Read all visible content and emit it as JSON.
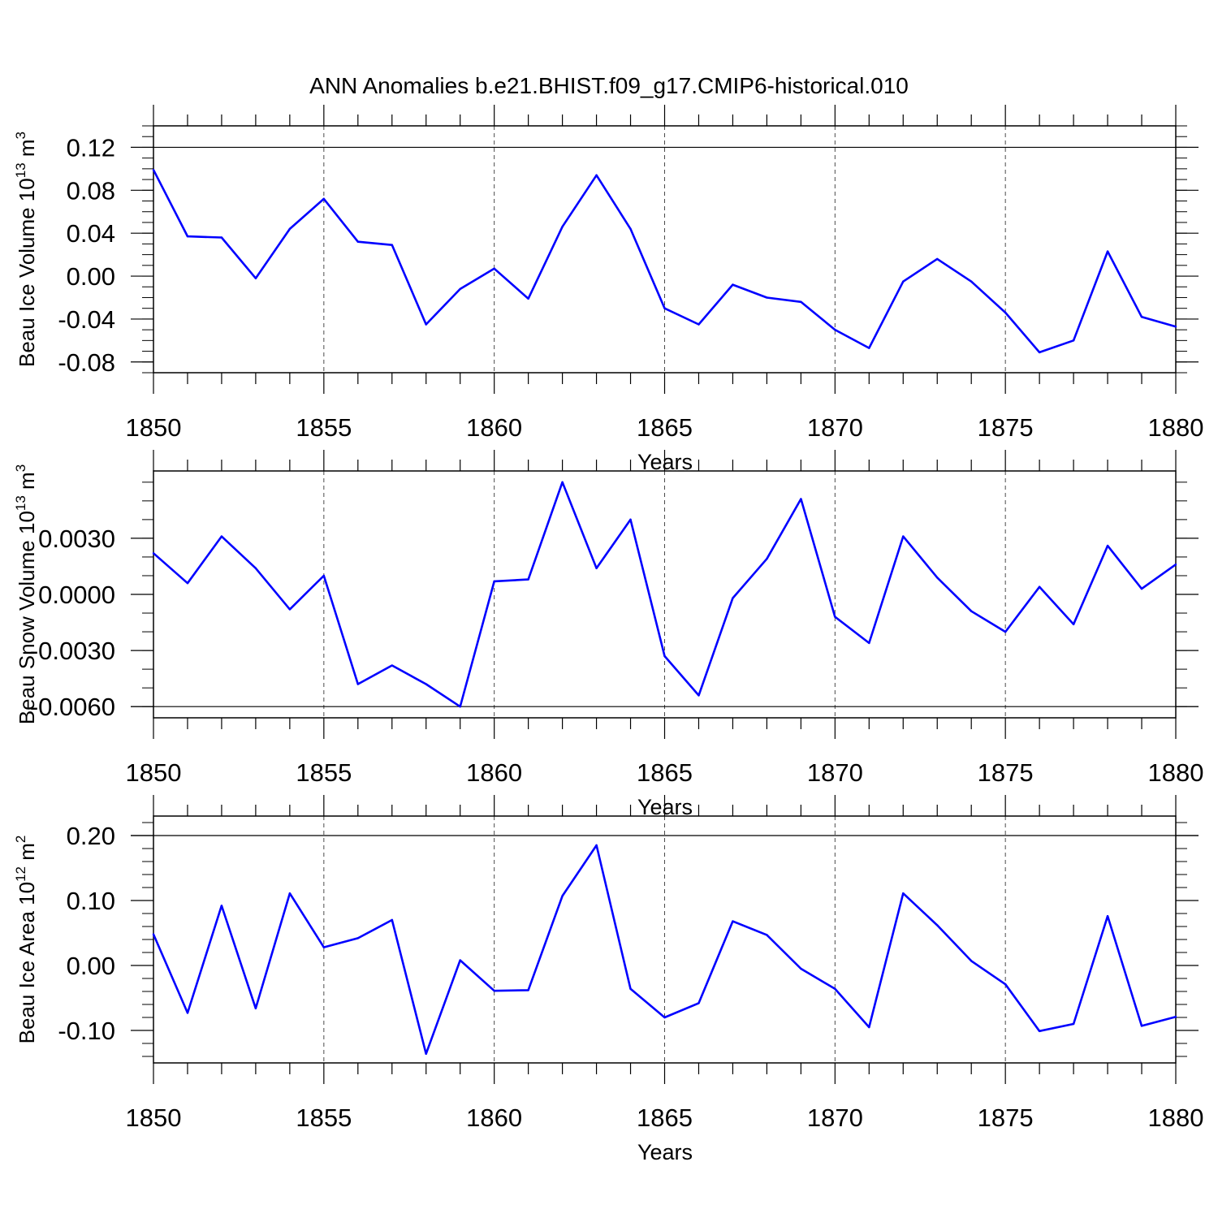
{
  "title": "ANN Anomalies b.e21.BHIST.f09_g17.CMIP6-historical.010",
  "colors": {
    "line": "#0000ff",
    "axis": "#000000",
    "grid": "#000000"
  },
  "chart_data": [
    {
      "type": "line",
      "name": "panel-ice-volume",
      "ylabel": "Beau Ice Volume 10",
      "ylabel_sup": "13",
      "ylabel_unit": " m",
      "ylabel_unit_sup": "3",
      "xlabel": "Years",
      "xlim": [
        1850,
        1880
      ],
      "ylim": [
        -0.09,
        0.14
      ],
      "xticks": [
        1850,
        1855,
        1860,
        1865,
        1870,
        1875,
        1880
      ],
      "xtick_labels": [
        "1850",
        "1855",
        "1860",
        "1865",
        "1870",
        "1875",
        "1880"
      ],
      "yticks": [
        0.12,
        0.08,
        0.04,
        0.0,
        -0.04,
        -0.08
      ],
      "ytick_labels": [
        "0.12",
        "0.08",
        "0.04",
        "0.00",
        "-0.04",
        "-0.08"
      ],
      "y_minor_step": 0.01,
      "hline_at": 0.12,
      "x": [
        1850,
        1851,
        1852,
        1853,
        1854,
        1855,
        1856,
        1857,
        1858,
        1859,
        1860,
        1861,
        1862,
        1863,
        1864,
        1865,
        1866,
        1867,
        1868,
        1869,
        1870,
        1871,
        1872,
        1873,
        1874,
        1875,
        1876,
        1877,
        1878,
        1879,
        1880
      ],
      "values": [
        0.099,
        0.037,
        0.036,
        -0.002,
        0.044,
        0.072,
        0.032,
        0.029,
        -0.045,
        -0.012,
        0.007,
        -0.021,
        0.046,
        0.094,
        0.044,
        -0.03,
        -0.045,
        -0.008,
        -0.02,
        -0.024,
        -0.05,
        -0.067,
        -0.005,
        0.016,
        -0.005,
        -0.034,
        -0.071,
        -0.06,
        0.023,
        -0.038,
        -0.047
      ]
    },
    {
      "type": "line",
      "name": "panel-snow-volume",
      "ylabel": "Beau Snow Volume 10",
      "ylabel_sup": "13",
      "ylabel_unit": " m",
      "ylabel_unit_sup": "3",
      "xlabel": "Years",
      "xlim": [
        1850,
        1880
      ],
      "ylim": [
        -0.0066,
        0.0066
      ],
      "xticks": [
        1850,
        1855,
        1860,
        1865,
        1870,
        1875,
        1880
      ],
      "xtick_labels": [
        "1850",
        "1855",
        "1860",
        "1865",
        "1870",
        "1875",
        "1880"
      ],
      "yticks": [
        0.003,
        0.0,
        -0.003,
        -0.006
      ],
      "ytick_labels": [
        "0.0030",
        "0.0000",
        "-0.0030",
        "-0.0060"
      ],
      "y_minor_step": 0.001,
      "hline_at": -0.006,
      "x": [
        1850,
        1851,
        1852,
        1853,
        1854,
        1855,
        1856,
        1857,
        1858,
        1859,
        1860,
        1861,
        1862,
        1863,
        1864,
        1865,
        1866,
        1867,
        1868,
        1869,
        1870,
        1871,
        1872,
        1873,
        1874,
        1875,
        1876,
        1877,
        1878,
        1879,
        1880
      ],
      "values": [
        0.0022,
        0.0006,
        0.0031,
        0.0014,
        -0.0008,
        0.001,
        -0.0048,
        -0.0038,
        -0.0048,
        -0.006,
        0.0007,
        0.0008,
        0.006,
        0.0014,
        0.004,
        -0.0033,
        -0.0054,
        -0.0002,
        0.0019,
        0.0051,
        -0.0012,
        -0.0026,
        0.0031,
        0.0009,
        -0.0009,
        -0.002,
        0.0004,
        -0.0016,
        0.0026,
        0.0003,
        0.0016
      ]
    },
    {
      "type": "line",
      "name": "panel-ice-area",
      "ylabel": "Beau Ice Area 10",
      "ylabel_sup": "12",
      "ylabel_unit": " m",
      "ylabel_unit_sup": "2",
      "xlabel": "Years",
      "xlim": [
        1850,
        1880
      ],
      "ylim": [
        -0.15,
        0.23
      ],
      "xticks": [
        1850,
        1855,
        1860,
        1865,
        1870,
        1875,
        1880
      ],
      "xtick_labels": [
        "1850",
        "1855",
        "1860",
        "1865",
        "1870",
        "1875",
        "1880"
      ],
      "yticks": [
        0.2,
        0.1,
        0.0,
        -0.1
      ],
      "ytick_labels": [
        "0.20",
        "0.10",
        "0.00",
        "-0.10"
      ],
      "y_minor_step": 0.02,
      "hline_at": 0.2,
      "x": [
        1850,
        1851,
        1852,
        1853,
        1854,
        1855,
        1856,
        1857,
        1858,
        1859,
        1860,
        1861,
        1862,
        1863,
        1864,
        1865,
        1866,
        1867,
        1868,
        1869,
        1870,
        1871,
        1872,
        1873,
        1874,
        1875,
        1876,
        1877,
        1878,
        1879,
        1880
      ],
      "values": [
        0.048,
        -0.073,
        0.092,
        -0.066,
        0.111,
        0.028,
        0.042,
        0.07,
        -0.136,
        0.008,
        -0.039,
        -0.038,
        0.107,
        0.185,
        -0.036,
        -0.08,
        -0.058,
        0.068,
        0.047,
        -0.005,
        -0.036,
        -0.095,
        0.111,
        0.062,
        0.007,
        -0.029,
        -0.101,
        -0.09,
        0.076,
        -0.093,
        -0.079
      ]
    }
  ]
}
